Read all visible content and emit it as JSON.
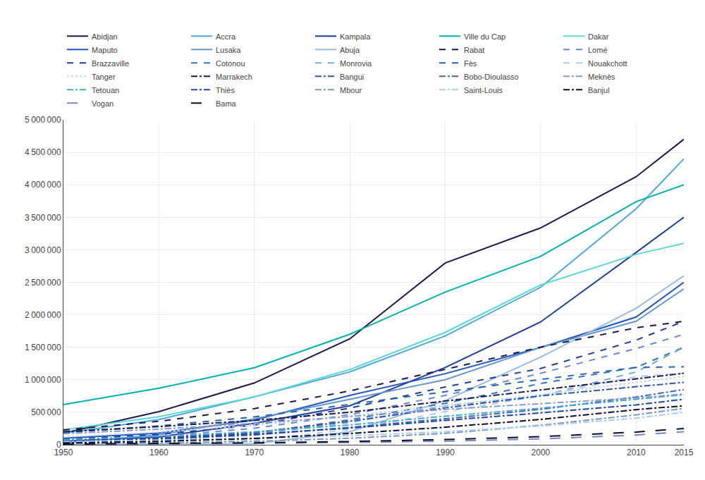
{
  "chart_data": {
    "type": "line",
    "x": [
      1950,
      1960,
      1970,
      1980,
      1990,
      2000,
      2010,
      2015
    ],
    "series": [
      {
        "name": "Abidjan",
        "color": "#1a1a4e",
        "line_style": "solid",
        "values": [
          179000,
          510000,
          951000,
          1630000,
          2797000,
          3337000,
          4125000,
          4700000
        ]
      },
      {
        "name": "Accra",
        "color": "#4da6e0",
        "line_style": "solid",
        "values": [
          177000,
          388000,
          738000,
          1121000,
          1674000,
          2424000,
          3630000,
          4400000
        ]
      },
      {
        "name": "Kampala",
        "color": "#1f3d99",
        "line_style": "solid",
        "values": [
          55000,
          120000,
          330000,
          600000,
          1189000,
          1890000,
          2960000,
          3500000
        ]
      },
      {
        "name": "Ville du Cap",
        "color": "#00b0b0",
        "line_style": "solid",
        "values": [
          619000,
          870000,
          1185000,
          1700000,
          2350000,
          2900000,
          3740000,
          4000000
        ]
      },
      {
        "name": "Dakar",
        "color": "#5dd8d0",
        "line_style": "solid",
        "values": [
          231000,
          430000,
          736000,
          1157000,
          1730000,
          2460000,
          2930000,
          3100000
        ]
      },
      {
        "name": "Maputo",
        "color": "#2255bb",
        "line_style": "solid",
        "values": [
          100000,
          180000,
          380000,
          760000,
          1094000,
          1497000,
          1966000,
          2500000
        ]
      },
      {
        "name": "Lusaka",
        "color": "#6699cc",
        "line_style": "solid",
        "values": [
          30000,
          153000,
          400000,
          700000,
          1000000,
          1500000,
          1900000,
          2400000
        ]
      },
      {
        "name": "Abuja",
        "color": "#99bbdd",
        "line_style": "solid",
        "values": [
          8000,
          10000,
          15000,
          200000,
          680000,
          1350000,
          2100000,
          2600000
        ]
      },
      {
        "name": "Rabat",
        "color": "#1a1a4e",
        "line_style": "dashed",
        "values": [
          227000,
          361000,
          557000,
          828000,
          1159000,
          1503000,
          1800000,
          1900000
        ]
      },
      {
        "name": "Lomé",
        "color": "#6688cc",
        "line_style": "dashed",
        "values": [
          70000,
          129000,
          254000,
          462000,
          759000,
          1100000,
          1480000,
          1700000
        ]
      },
      {
        "name": "Brazzaville",
        "color": "#1f3d99",
        "line_style": "dashed",
        "values": [
          83000,
          160000,
          302000,
          564000,
          890000,
          1175000,
          1610000,
          1900000
        ]
      },
      {
        "name": "Cotonou",
        "color": "#3377bb",
        "line_style": "dashed",
        "values": [
          27000,
          70000,
          178000,
          385000,
          638000,
          942000,
          1190000,
          1500000
        ]
      },
      {
        "name": "Monrovia",
        "color": "#77aacc",
        "line_style": "dashed",
        "values": [
          42000,
          82000,
          165000,
          342000,
          598000,
          750000,
          1120000,
          1500000
        ]
      },
      {
        "name": "Fès",
        "color": "#2266aa",
        "line_style": "dashed",
        "values": [
          185000,
          290000,
          428000,
          624000,
          815000,
          1005000,
          1190000,
          1200000
        ]
      },
      {
        "name": "Nouakchott",
        "color": "#aad0e8",
        "line_style": "dashed",
        "values": [
          6000,
          15000,
          70000,
          232000,
          508000,
          750000,
          1050000,
          1100000
        ]
      },
      {
        "name": "Tanger",
        "color": "#c0d8ee",
        "line_style": "dotted",
        "values": [
          120000,
          195000,
          300000,
          445000,
          604000,
          773000,
          960000,
          1050000
        ]
      },
      {
        "name": "Marrakech",
        "color": "#1a1a4e",
        "line_style": "dashdot",
        "values": [
          200000,
          280000,
          374000,
          500000,
          673000,
          844000,
          1010000,
          1100000
        ]
      },
      {
        "name": "Bangui",
        "color": "#3355aa",
        "line_style": "dashdot",
        "values": [
          58000,
          107000,
          187000,
          363000,
          568000,
          753000,
          894000,
          960000
        ]
      },
      {
        "name": "Bobo-Dioulasso",
        "color": "#4466aa",
        "line_style": "dashdot",
        "values": [
          50000,
          85000,
          150000,
          268000,
          400000,
          545000,
          735000,
          850000
        ]
      },
      {
        "name": "Meknès",
        "color": "#8899cc",
        "line_style": "dashdot",
        "values": [
          170000,
          240000,
          330000,
          433000,
          545000,
          630000,
          720000,
          780000
        ]
      },
      {
        "name": "Tetouan",
        "color": "#44aacc",
        "line_style": "dashdot",
        "values": [
          78000,
          130000,
          200000,
          305000,
          440000,
          563000,
          700000,
          770000
        ]
      },
      {
        "name": "Thiès",
        "color": "#2244aa",
        "line_style": "dashdot",
        "values": [
          58000,
          100000,
          163000,
          256000,
          375000,
          490000,
          614000,
          700000
        ]
      },
      {
        "name": "Mbour",
        "color": "#7799bb",
        "line_style": "dashdot",
        "values": [
          18000,
          30000,
          52000,
          100000,
          175000,
          300000,
          460000,
          560000
        ]
      },
      {
        "name": "Saint-Louis",
        "color": "#aaccee",
        "line_style": "dashdot",
        "values": [
          50000,
          70000,
          100000,
          140000,
          200000,
          290000,
          410000,
          500000
        ]
      },
      {
        "name": "Banjul",
        "color": "#0d0d2b",
        "line_style": "dashdot",
        "values": [
          28000,
          52000,
          97000,
          173000,
          270000,
          390000,
          540000,
          600000
        ]
      },
      {
        "name": "Vogan",
        "color": "#7788cc",
        "line_style": "loosedash",
        "values": [
          10000,
          15000,
          22000,
          35000,
          55000,
          90000,
          150000,
          200000
        ]
      },
      {
        "name": "Bama",
        "color": "#0d0d2b",
        "line_style": "loosedash",
        "values": [
          12000,
          18000,
          30000,
          50000,
          80000,
          125000,
          195000,
          250000
        ]
      }
    ],
    "xlim": [
      1950,
      2015
    ],
    "xticks": [
      1950,
      1960,
      1970,
      1980,
      1990,
      2000,
      2010,
      2015
    ],
    "ylim": [
      0,
      5000000
    ],
    "yticks": [
      0,
      {
        "value": 500000,
        "label": "500 000"
      },
      {
        "value": 1000000,
        "label": "1 000 000"
      },
      {
        "value": 1500000,
        "label": "1 500 000"
      },
      {
        "value": 2000000,
        "label": "2 000 000"
      },
      {
        "value": 2500000,
        "label": "2 500 000"
      },
      {
        "value": 3000000,
        "label": "3 000 000"
      },
      {
        "value": 3500000,
        "label": "3 500 000"
      },
      {
        "value": 4000000,
        "label": "4 000 000"
      },
      {
        "value": 4500000,
        "label": "4 500 000"
      },
      {
        "value": 5000000,
        "label": "5 000 000"
      }
    ],
    "grid": true,
    "legend": "top"
  }
}
